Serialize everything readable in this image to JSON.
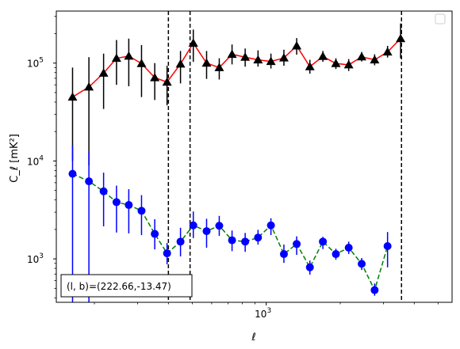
{
  "chart_data": {
    "type": "scatter",
    "xscale": "log",
    "yscale": "log",
    "xlim": [
      140,
      5700
    ],
    "ylim": [
      360,
      340000
    ],
    "xlabel": "ℓ",
    "ylabel": "C_ℓ  [mK²]",
    "xticks": [
      {
        "value": 1000,
        "base": "10",
        "exp": "3"
      }
    ],
    "yticks": [
      {
        "value": 1000,
        "base": "10",
        "exp": "3"
      },
      {
        "value": 10000,
        "base": "10",
        "exp": "4"
      },
      {
        "value": 100000,
        "base": "10",
        "exp": "5"
      }
    ],
    "grid": false,
    "legend": {
      "placement": "top-right",
      "entries": []
    },
    "vlines": [
      400,
      490,
      3550
    ],
    "annotation": "(l, b)=(222.66,-13.47)",
    "series": [
      {
        "line_color": "#ff0000",
        "line_style": "solid",
        "marker": "triangle",
        "marker_color": "#000000",
        "err_color": "#000000",
        "points": [
          {
            "x": 163,
            "y": 45000,
            "lo": 10000,
            "hi": 90000
          },
          {
            "x": 190,
            "y": 57000,
            "lo": 9000,
            "hi": 115000
          },
          {
            "x": 218,
            "y": 79000,
            "lo": 34000,
            "hi": 125000
          },
          {
            "x": 246,
            "y": 112000,
            "lo": 60000,
            "hi": 172000
          },
          {
            "x": 276,
            "y": 118000,
            "lo": 58000,
            "hi": 178000
          },
          {
            "x": 311,
            "y": 99000,
            "lo": 45000,
            "hi": 153000
          },
          {
            "x": 352,
            "y": 71000,
            "lo": 42000,
            "hi": 100000
          },
          {
            "x": 395,
            "y": 64000,
            "lo": 37000,
            "hi": 94000
          },
          {
            "x": 448,
            "y": 98000,
            "lo": 62000,
            "hi": 133000
          },
          {
            "x": 505,
            "y": 160000,
            "lo": 103000,
            "hi": 220000
          },
          {
            "x": 572,
            "y": 100000,
            "lo": 69000,
            "hi": 133000
          },
          {
            "x": 644,
            "y": 90000,
            "lo": 68000,
            "hi": 112000
          },
          {
            "x": 726,
            "y": 123000,
            "lo": 97000,
            "hi": 155000
          },
          {
            "x": 821,
            "y": 115000,
            "lo": 92000,
            "hi": 141000
          },
          {
            "x": 926,
            "y": 108000,
            "lo": 92000,
            "hi": 135000
          },
          {
            "x": 1045,
            "y": 104000,
            "lo": 88000,
            "hi": 125000
          },
          {
            "x": 1180,
            "y": 113000,
            "lo": 94000,
            "hi": 137000
          },
          {
            "x": 1330,
            "y": 150000,
            "lo": 122000,
            "hi": 180000
          },
          {
            "x": 1505,
            "y": 92000,
            "lo": 78000,
            "hi": 108000
          },
          {
            "x": 1700,
            "y": 117000,
            "lo": 103000,
            "hi": 133000
          },
          {
            "x": 1920,
            "y": 99000,
            "lo": 87000,
            "hi": 112000
          },
          {
            "x": 2165,
            "y": 96000,
            "lo": 83000,
            "hi": 110000
          },
          {
            "x": 2445,
            "y": 116000,
            "lo": 104000,
            "hi": 130000
          },
          {
            "x": 2760,
            "y": 108000,
            "lo": 95000,
            "hi": 123000
          },
          {
            "x": 3115,
            "y": 130000,
            "lo": 114000,
            "hi": 150000
          },
          {
            "x": 3520,
            "y": 178000,
            "lo": 112000,
            "hi": 254000
          }
        ]
      },
      {
        "line_color": "#008000",
        "line_style": "dashed",
        "marker": "circle",
        "marker_color": "#0000ff",
        "err_color": "#0000ff",
        "points": [
          {
            "x": 163,
            "y": 7400,
            "lo": 300,
            "hi": 14500
          },
          {
            "x": 190,
            "y": 6200,
            "lo": 300,
            "hi": 12500
          },
          {
            "x": 218,
            "y": 4900,
            "lo": 2150,
            "hi": 7600
          },
          {
            "x": 246,
            "y": 3800,
            "lo": 1860,
            "hi": 5600
          },
          {
            "x": 276,
            "y": 3550,
            "lo": 1820,
            "hi": 5150
          },
          {
            "x": 311,
            "y": 3100,
            "lo": 1750,
            "hi": 4480
          },
          {
            "x": 352,
            "y": 1800,
            "lo": 1250,
            "hi": 2540
          },
          {
            "x": 395,
            "y": 1140,
            "lo": 880,
            "hi": 1450
          },
          {
            "x": 448,
            "y": 1500,
            "lo": 1060,
            "hi": 2080
          },
          {
            "x": 505,
            "y": 2200,
            "lo": 1630,
            "hi": 3050
          },
          {
            "x": 572,
            "y": 1920,
            "lo": 1300,
            "hi": 2570
          },
          {
            "x": 644,
            "y": 2180,
            "lo": 1720,
            "hi": 2750
          },
          {
            "x": 726,
            "y": 1550,
            "lo": 1200,
            "hi": 1950
          },
          {
            "x": 821,
            "y": 1500,
            "lo": 1180,
            "hi": 1840
          },
          {
            "x": 926,
            "y": 1650,
            "lo": 1400,
            "hi": 1980
          },
          {
            "x": 1045,
            "y": 2200,
            "lo": 1750,
            "hi": 2600
          },
          {
            "x": 1180,
            "y": 1120,
            "lo": 910,
            "hi": 1400
          },
          {
            "x": 1330,
            "y": 1420,
            "lo": 1100,
            "hi": 1700
          },
          {
            "x": 1505,
            "y": 820,
            "lo": 690,
            "hi": 960
          },
          {
            "x": 1700,
            "y": 1500,
            "lo": 1260,
            "hi": 1680
          },
          {
            "x": 1920,
            "y": 1120,
            "lo": 980,
            "hi": 1270
          },
          {
            "x": 2165,
            "y": 1300,
            "lo": 1120,
            "hi": 1500
          },
          {
            "x": 2445,
            "y": 890,
            "lo": 770,
            "hi": 1020
          },
          {
            "x": 2760,
            "y": 480,
            "lo": 420,
            "hi": 560
          },
          {
            "x": 3115,
            "y": 1350,
            "lo": 820,
            "hi": 1880
          }
        ]
      }
    ]
  }
}
